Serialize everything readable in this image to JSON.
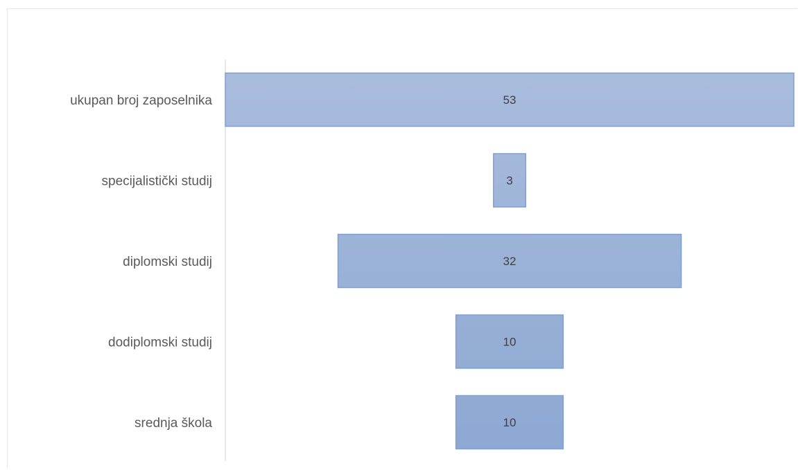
{
  "chart_data": {
    "type": "bar",
    "subtype": "funnel",
    "categories": [
      "ukupan broj zaposelnika",
      "specijalistički studij",
      "diplomski studij",
      "dodiplomski studij",
      "srednja škola"
    ],
    "values": [
      53,
      3,
      32,
      10,
      10
    ],
    "title": "",
    "xlabel": "",
    "ylabel": "",
    "grid": false,
    "legend": "none",
    "colors": {
      "bar_fill_top": "#a9bcdc",
      "bar_fill_bottom": "#8da8d3",
      "bar_stroke": "#7f9fd1",
      "axis": "#d0d0d0",
      "category_text": "#595959",
      "value_text": "#404040"
    }
  }
}
